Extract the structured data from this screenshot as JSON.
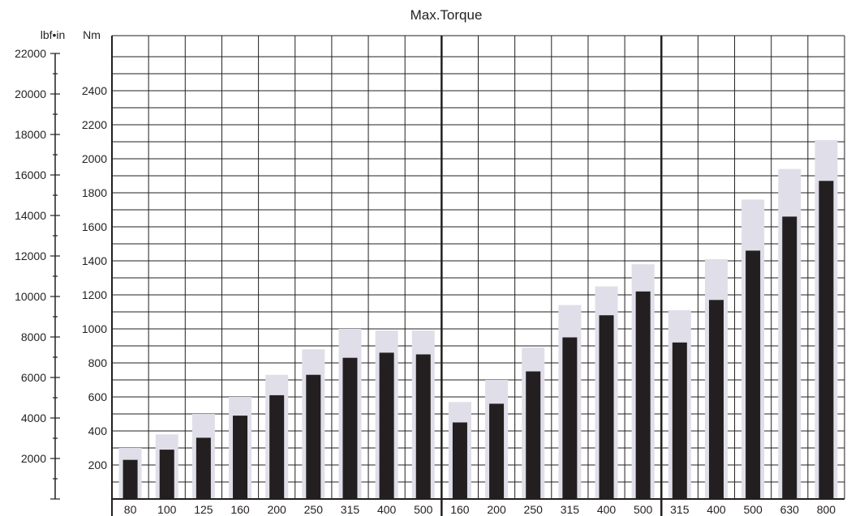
{
  "chart_data": {
    "type": "bar",
    "title": "Max.Torque",
    "y_left_unit": "lbf•in",
    "y_right_unit": "Nm",
    "y_lbf_ticks": [
      2000,
      4000,
      6000,
      8000,
      10000,
      12000,
      14000,
      16000,
      18000,
      20000,
      22000
    ],
    "y_nm_ticks": [
      200,
      400,
      600,
      800,
      1000,
      1200,
      1400,
      1600,
      1800,
      2000,
      2200,
      2400
    ],
    "ylim_nm": [
      0,
      2600
    ],
    "ylim_lbf": [
      0,
      22000
    ],
    "grid": true,
    "categories": [
      "80",
      "100",
      "125",
      "160",
      "200",
      "250",
      "315",
      "400",
      "500",
      "160",
      "200",
      "250",
      "315",
      "400",
      "500",
      "315",
      "400",
      "500",
      "630",
      "800"
    ],
    "group_separators_after_index": [
      8,
      14
    ],
    "series": [
      {
        "values": [
          300,
          380,
          500,
          600,
          730,
          880,
          1000,
          990,
          990,
          570,
          700,
          890,
          1140,
          1250,
          1380,
          1110,
          1410,
          1760,
          1940,
          2110
        ],
        "color": "#e0dfe9"
      },
      {
        "values": [
          230,
          290,
          360,
          490,
          610,
          730,
          830,
          860,
          850,
          450,
          560,
          750,
          950,
          1080,
          1220,
          920,
          1170,
          1460,
          1660,
          1870
        ],
        "color": "#231f20"
      }
    ]
  }
}
